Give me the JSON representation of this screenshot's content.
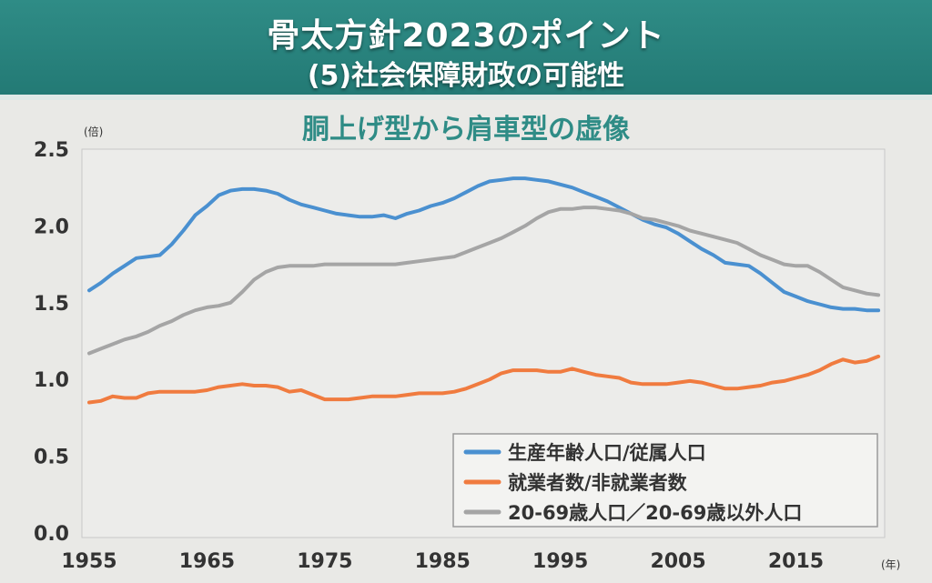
{
  "header": {
    "title": "骨太方針2023のポイント",
    "subtitle": "(5)社会保障財政の可能性"
  },
  "chart_data": {
    "type": "line",
    "title": "胴上げ型から肩車型の虚像",
    "ylabel": "(倍)",
    "xlabel": "(年)",
    "xlim": [
      1955,
      2023
    ],
    "ylim": [
      0,
      2.5
    ],
    "y_ticks": [
      "0.0",
      "0.5",
      "1.0",
      "1.5",
      "2.0",
      "2.5"
    ],
    "x_ticks": [
      "1955",
      "1965",
      "1975",
      "1985",
      "1995",
      "2005",
      "2015"
    ],
    "grid": false,
    "legend_position": "bottom-right",
    "colors": {
      "blue": "#4a90d0",
      "orange": "#f07b3f",
      "gray": "#a5a5a5",
      "header_bg": "#2a827c",
      "chart_title": "#2f8c86"
    },
    "series": [
      {
        "name": "生産年齢人口/従属人口",
        "color": "#4a90d0",
        "points": [
          [
            1955,
            1.58
          ],
          [
            1956,
            1.63
          ],
          [
            1957,
            1.69
          ],
          [
            1958,
            1.74
          ],
          [
            1959,
            1.79
          ],
          [
            1960,
            1.8
          ],
          [
            1961,
            1.81
          ],
          [
            1962,
            1.88
          ],
          [
            1963,
            1.97
          ],
          [
            1964,
            2.07
          ],
          [
            1965,
            2.13
          ],
          [
            1966,
            2.2
          ],
          [
            1967,
            2.23
          ],
          [
            1968,
            2.24
          ],
          [
            1969,
            2.24
          ],
          [
            1970,
            2.23
          ],
          [
            1971,
            2.21
          ],
          [
            1972,
            2.17
          ],
          [
            1973,
            2.14
          ],
          [
            1974,
            2.12
          ],
          [
            1975,
            2.1
          ],
          [
            1976,
            2.08
          ],
          [
            1977,
            2.07
          ],
          [
            1978,
            2.06
          ],
          [
            1979,
            2.06
          ],
          [
            1980,
            2.07
          ],
          [
            1981,
            2.05
          ],
          [
            1982,
            2.08
          ],
          [
            1983,
            2.1
          ],
          [
            1984,
            2.13
          ],
          [
            1985,
            2.15
          ],
          [
            1986,
            2.18
          ],
          [
            1987,
            2.22
          ],
          [
            1988,
            2.26
          ],
          [
            1989,
            2.29
          ],
          [
            1990,
            2.3
          ],
          [
            1991,
            2.31
          ],
          [
            1992,
            2.31
          ],
          [
            1993,
            2.3
          ],
          [
            1994,
            2.29
          ],
          [
            1995,
            2.27
          ],
          [
            1996,
            2.25
          ],
          [
            1997,
            2.22
          ],
          [
            1998,
            2.19
          ],
          [
            1999,
            2.16
          ],
          [
            2000,
            2.12
          ],
          [
            2001,
            2.08
          ],
          [
            2002,
            2.04
          ],
          [
            2003,
            2.01
          ],
          [
            2004,
            1.99
          ],
          [
            2005,
            1.95
          ],
          [
            2006,
            1.9
          ],
          [
            2007,
            1.85
          ],
          [
            2008,
            1.81
          ],
          [
            2009,
            1.76
          ],
          [
            2010,
            1.75
          ],
          [
            2011,
            1.74
          ],
          [
            2012,
            1.69
          ],
          [
            2013,
            1.63
          ],
          [
            2014,
            1.57
          ],
          [
            2015,
            1.54
          ],
          [
            2016,
            1.51
          ],
          [
            2017,
            1.49
          ],
          [
            2018,
            1.47
          ],
          [
            2019,
            1.46
          ],
          [
            2020,
            1.46
          ],
          [
            2021,
            1.45
          ],
          [
            2022,
            1.45
          ]
        ]
      },
      {
        "name": "就業者数/非就業者数",
        "color": "#f07b3f",
        "points": [
          [
            1955,
            0.85
          ],
          [
            1956,
            0.86
          ],
          [
            1957,
            0.89
          ],
          [
            1958,
            0.88
          ],
          [
            1959,
            0.88
          ],
          [
            1960,
            0.91
          ],
          [
            1961,
            0.92
          ],
          [
            1962,
            0.92
          ],
          [
            1963,
            0.92
          ],
          [
            1964,
            0.92
          ],
          [
            1965,
            0.93
          ],
          [
            1966,
            0.95
          ],
          [
            1967,
            0.96
          ],
          [
            1968,
            0.97
          ],
          [
            1969,
            0.96
          ],
          [
            1970,
            0.96
          ],
          [
            1971,
            0.95
          ],
          [
            1972,
            0.92
          ],
          [
            1973,
            0.93
          ],
          [
            1974,
            0.9
          ],
          [
            1975,
            0.87
          ],
          [
            1976,
            0.87
          ],
          [
            1977,
            0.87
          ],
          [
            1978,
            0.88
          ],
          [
            1979,
            0.89
          ],
          [
            1980,
            0.89
          ],
          [
            1981,
            0.89
          ],
          [
            1982,
            0.9
          ],
          [
            1983,
            0.91
          ],
          [
            1984,
            0.91
          ],
          [
            1985,
            0.91
          ],
          [
            1986,
            0.92
          ],
          [
            1987,
            0.94
          ],
          [
            1988,
            0.97
          ],
          [
            1989,
            1.0
          ],
          [
            1990,
            1.04
          ],
          [
            1991,
            1.06
          ],
          [
            1992,
            1.06
          ],
          [
            1993,
            1.06
          ],
          [
            1994,
            1.05
          ],
          [
            1995,
            1.05
          ],
          [
            1996,
            1.07
          ],
          [
            1997,
            1.05
          ],
          [
            1998,
            1.03
          ],
          [
            1999,
            1.02
          ],
          [
            2000,
            1.01
          ],
          [
            2001,
            0.98
          ],
          [
            2002,
            0.97
          ],
          [
            2003,
            0.97
          ],
          [
            2004,
            0.97
          ],
          [
            2005,
            0.98
          ],
          [
            2006,
            0.99
          ],
          [
            2007,
            0.98
          ],
          [
            2008,
            0.96
          ],
          [
            2009,
            0.94
          ],
          [
            2010,
            0.94
          ],
          [
            2011,
            0.95
          ],
          [
            2012,
            0.96
          ],
          [
            2013,
            0.98
          ],
          [
            2014,
            0.99
          ],
          [
            2015,
            1.01
          ],
          [
            2016,
            1.03
          ],
          [
            2017,
            1.06
          ],
          [
            2018,
            1.1
          ],
          [
            2019,
            1.13
          ],
          [
            2020,
            1.11
          ],
          [
            2021,
            1.12
          ],
          [
            2022,
            1.15
          ]
        ]
      },
      {
        "name": "20-69歳人口／20-69歳以外人口",
        "color": "#a5a5a5",
        "points": [
          [
            1955,
            1.17
          ],
          [
            1956,
            1.2
          ],
          [
            1957,
            1.23
          ],
          [
            1958,
            1.26
          ],
          [
            1959,
            1.28
          ],
          [
            1960,
            1.31
          ],
          [
            1961,
            1.35
          ],
          [
            1962,
            1.38
          ],
          [
            1963,
            1.42
          ],
          [
            1964,
            1.45
          ],
          [
            1965,
            1.47
          ],
          [
            1966,
            1.48
          ],
          [
            1967,
            1.5
          ],
          [
            1968,
            1.57
          ],
          [
            1969,
            1.65
          ],
          [
            1970,
            1.7
          ],
          [
            1971,
            1.73
          ],
          [
            1972,
            1.74
          ],
          [
            1973,
            1.74
          ],
          [
            1974,
            1.74
          ],
          [
            1975,
            1.75
          ],
          [
            1976,
            1.75
          ],
          [
            1977,
            1.75
          ],
          [
            1978,
            1.75
          ],
          [
            1979,
            1.75
          ],
          [
            1980,
            1.75
          ],
          [
            1981,
            1.75
          ],
          [
            1982,
            1.76
          ],
          [
            1983,
            1.77
          ],
          [
            1984,
            1.78
          ],
          [
            1985,
            1.79
          ],
          [
            1986,
            1.8
          ],
          [
            1987,
            1.83
          ],
          [
            1988,
            1.86
          ],
          [
            1989,
            1.89
          ],
          [
            1990,
            1.92
          ],
          [
            1991,
            1.96
          ],
          [
            1992,
            2.0
          ],
          [
            1993,
            2.05
          ],
          [
            1994,
            2.09
          ],
          [
            1995,
            2.11
          ],
          [
            1996,
            2.11
          ],
          [
            1997,
            2.12
          ],
          [
            1998,
            2.12
          ],
          [
            1999,
            2.11
          ],
          [
            2000,
            2.1
          ],
          [
            2001,
            2.08
          ],
          [
            2002,
            2.05
          ],
          [
            2003,
            2.04
          ],
          [
            2004,
            2.02
          ],
          [
            2005,
            2.0
          ],
          [
            2006,
            1.97
          ],
          [
            2007,
            1.95
          ],
          [
            2008,
            1.93
          ],
          [
            2009,
            1.91
          ],
          [
            2010,
            1.89
          ],
          [
            2011,
            1.85
          ],
          [
            2012,
            1.81
          ],
          [
            2013,
            1.78
          ],
          [
            2014,
            1.75
          ],
          [
            2015,
            1.74
          ],
          [
            2016,
            1.74
          ],
          [
            2017,
            1.7
          ],
          [
            2018,
            1.65
          ],
          [
            2019,
            1.6
          ],
          [
            2020,
            1.58
          ],
          [
            2021,
            1.56
          ],
          [
            2022,
            1.55
          ]
        ]
      }
    ]
  }
}
